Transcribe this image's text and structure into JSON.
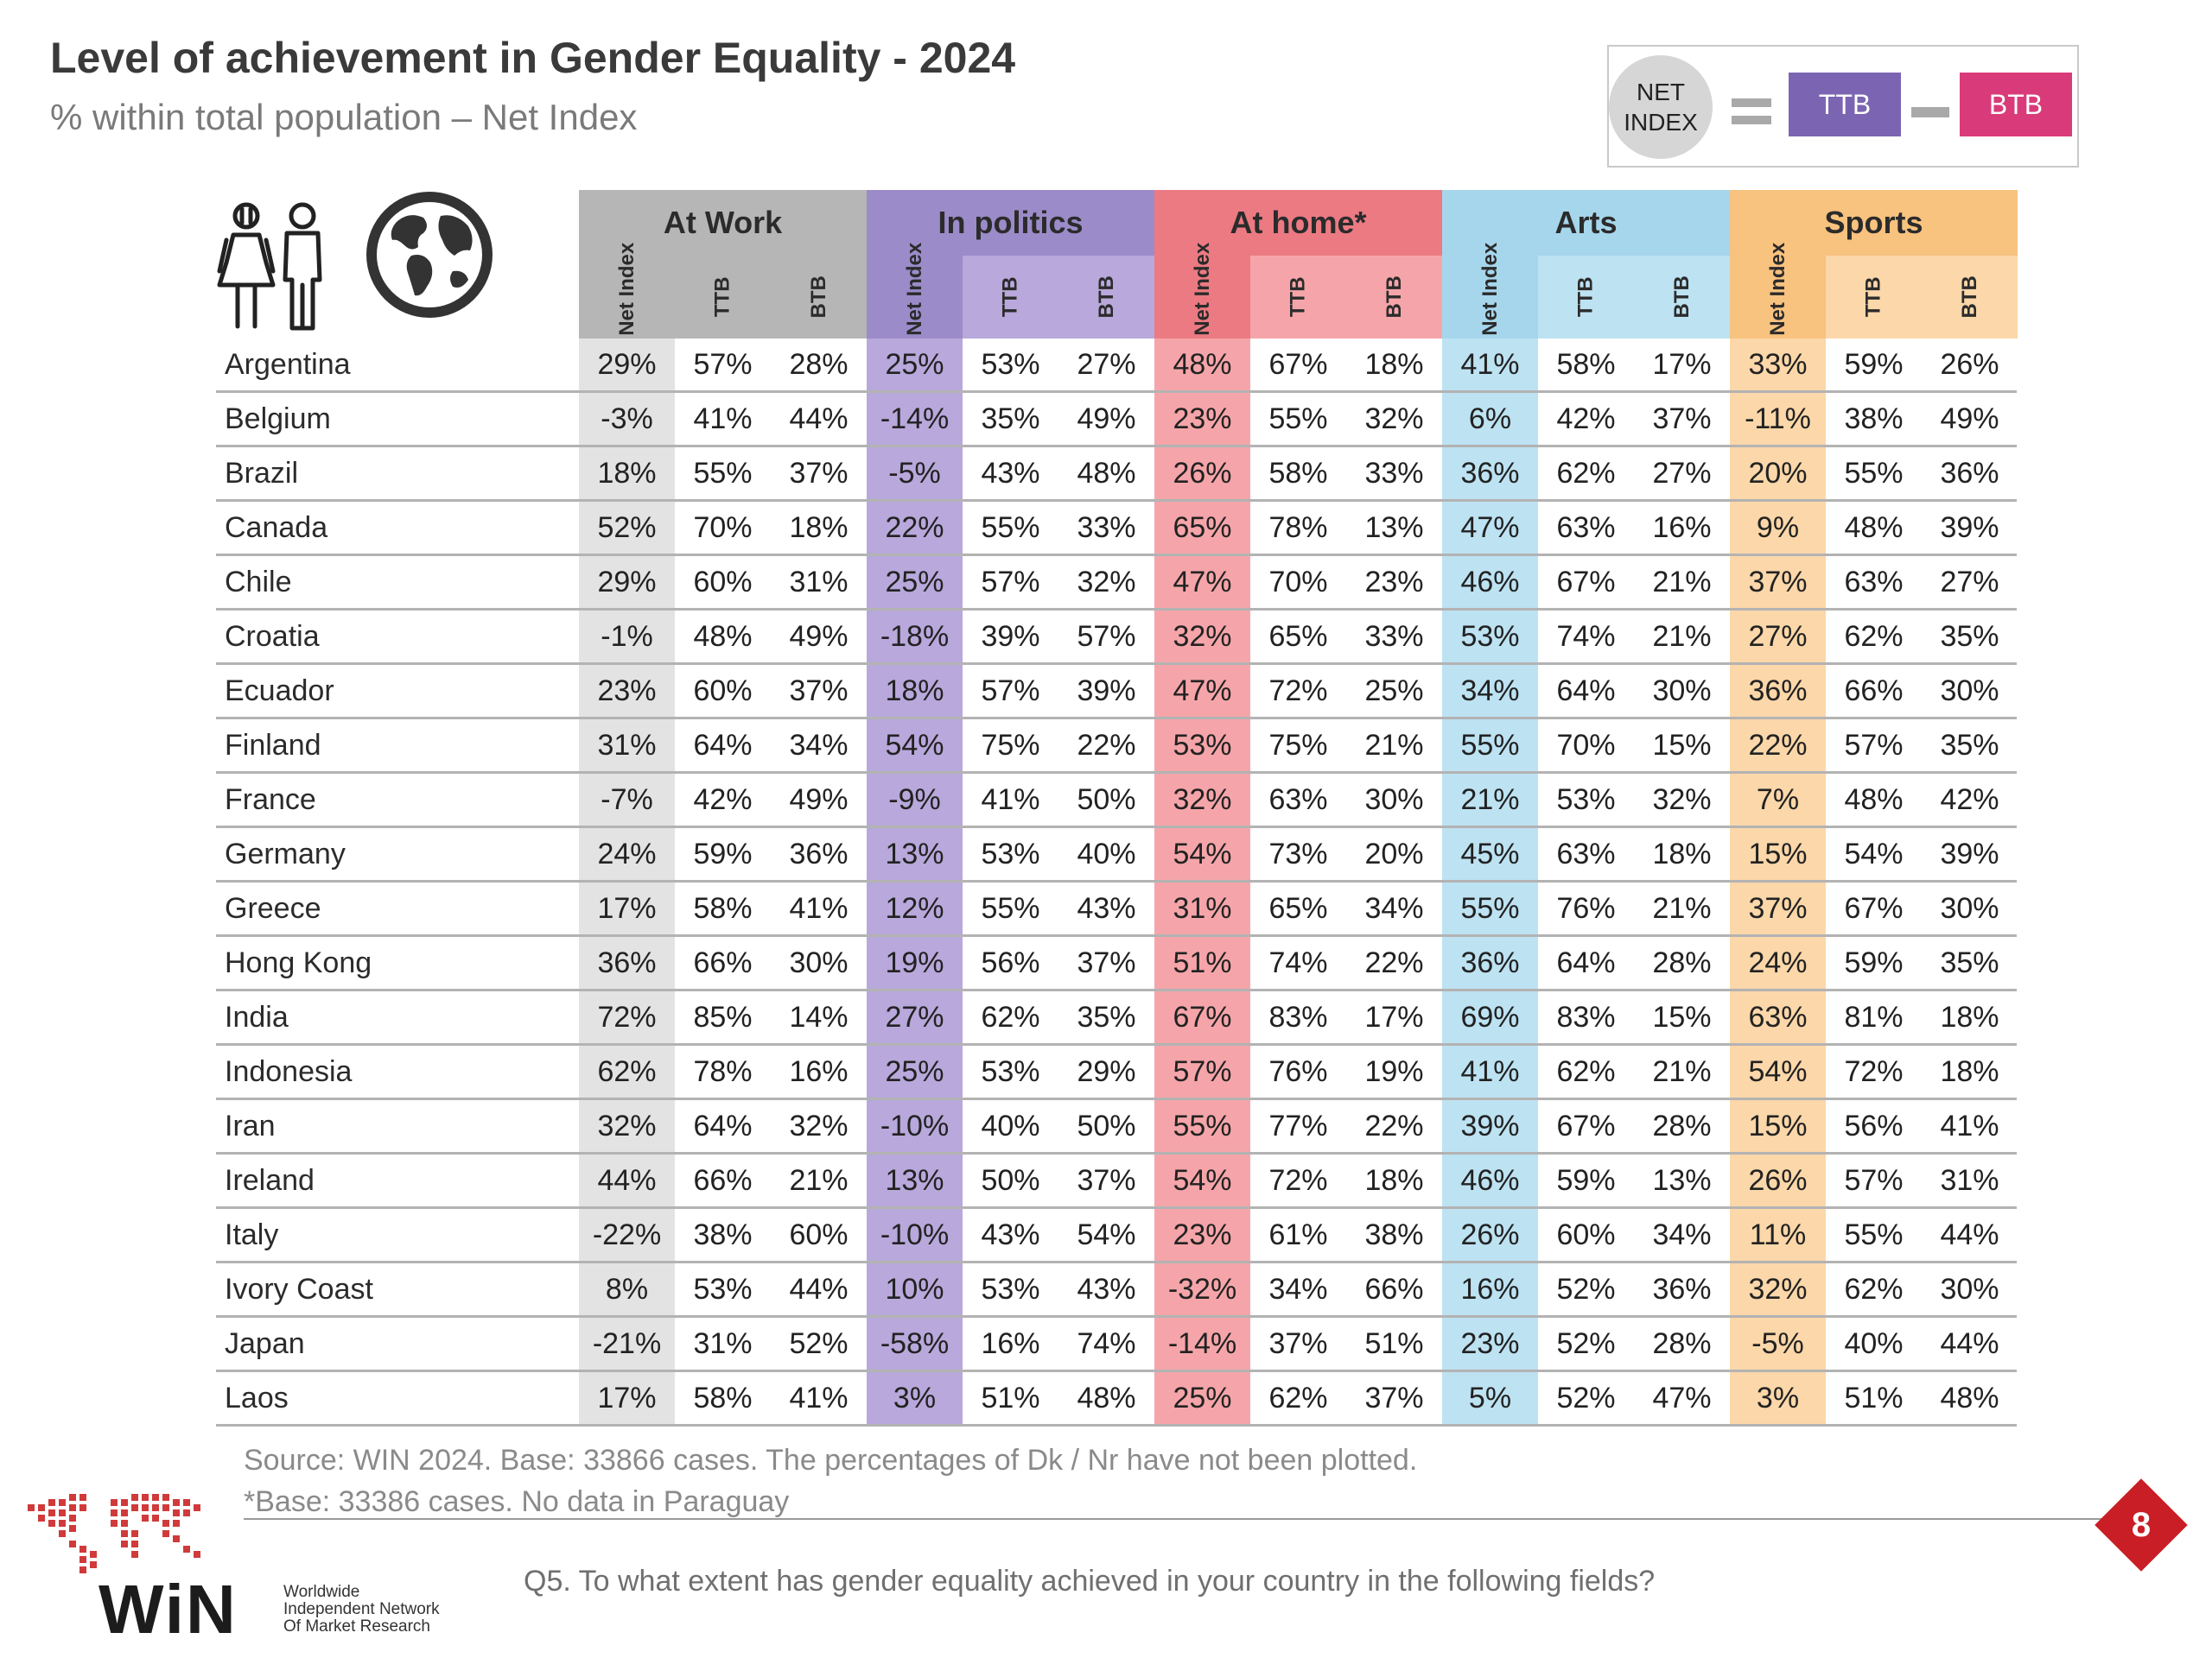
{
  "title": "Level of achievement in Gender Equality - 2024",
  "subtitle": "% within total population – Net Index",
  "legend": {
    "net_index_line1": "NET",
    "net_index_line2": "INDEX",
    "ttb": "TTB",
    "btb": "BTB"
  },
  "colors": {
    "work_header": "#b6b6b6",
    "work_net": "#e3e3e3",
    "politics_header": "#9b8bc9",
    "politics_net": "#b8a8db",
    "home_header": "#ec7a82",
    "home_net": "#f5a5a9",
    "arts_header": "#a6d6ec",
    "arts_net": "#bde2f2",
    "sports_header": "#f8c27f",
    "sports_net": "#fbd7a9"
  },
  "chart_data": {
    "type": "table",
    "title": "Level of achievement in Gender Equality - 2024",
    "subtitle": "% within total population – Net Index",
    "groups": [
      "At Work",
      "In politics",
      "At home*",
      "Arts",
      "Sports"
    ],
    "subcolumns": [
      "Net Index",
      "TTB",
      "BTB"
    ],
    "rows": [
      {
        "country": "Argentina",
        "values": [
          "29%",
          "57%",
          "28%",
          "25%",
          "53%",
          "27%",
          "48%",
          "67%",
          "18%",
          "41%",
          "58%",
          "17%",
          "33%",
          "59%",
          "26%"
        ]
      },
      {
        "country": "Belgium",
        "values": [
          "-3%",
          "41%",
          "44%",
          "-14%",
          "35%",
          "49%",
          "23%",
          "55%",
          "32%",
          "6%",
          "42%",
          "37%",
          "-11%",
          "38%",
          "49%"
        ]
      },
      {
        "country": "Brazil",
        "values": [
          "18%",
          "55%",
          "37%",
          "-5%",
          "43%",
          "48%",
          "26%",
          "58%",
          "33%",
          "36%",
          "62%",
          "27%",
          "20%",
          "55%",
          "36%"
        ]
      },
      {
        "country": "Canada",
        "values": [
          "52%",
          "70%",
          "18%",
          "22%",
          "55%",
          "33%",
          "65%",
          "78%",
          "13%",
          "47%",
          "63%",
          "16%",
          "9%",
          "48%",
          "39%"
        ]
      },
      {
        "country": "Chile",
        "values": [
          "29%",
          "60%",
          "31%",
          "25%",
          "57%",
          "32%",
          "47%",
          "70%",
          "23%",
          "46%",
          "67%",
          "21%",
          "37%",
          "63%",
          "27%"
        ]
      },
      {
        "country": "Croatia",
        "values": [
          "-1%",
          "48%",
          "49%",
          "-18%",
          "39%",
          "57%",
          "32%",
          "65%",
          "33%",
          "53%",
          "74%",
          "21%",
          "27%",
          "62%",
          "35%"
        ]
      },
      {
        "country": "Ecuador",
        "values": [
          "23%",
          "60%",
          "37%",
          "18%",
          "57%",
          "39%",
          "47%",
          "72%",
          "25%",
          "34%",
          "64%",
          "30%",
          "36%",
          "66%",
          "30%"
        ]
      },
      {
        "country": "Finland",
        "values": [
          "31%",
          "64%",
          "34%",
          "54%",
          "75%",
          "22%",
          "53%",
          "75%",
          "21%",
          "55%",
          "70%",
          "15%",
          "22%",
          "57%",
          "35%"
        ]
      },
      {
        "country": "France",
        "values": [
          "-7%",
          "42%",
          "49%",
          "-9%",
          "41%",
          "50%",
          "32%",
          "63%",
          "30%",
          "21%",
          "53%",
          "32%",
          "7%",
          "48%",
          "42%"
        ]
      },
      {
        "country": "Germany",
        "values": [
          "24%",
          "59%",
          "36%",
          "13%",
          "53%",
          "40%",
          "54%",
          "73%",
          "20%",
          "45%",
          "63%",
          "18%",
          "15%",
          "54%",
          "39%"
        ]
      },
      {
        "country": "Greece",
        "values": [
          "17%",
          "58%",
          "41%",
          "12%",
          "55%",
          "43%",
          "31%",
          "65%",
          "34%",
          "55%",
          "76%",
          "21%",
          "37%",
          "67%",
          "30%"
        ]
      },
      {
        "country": "Hong Kong",
        "values": [
          "36%",
          "66%",
          "30%",
          "19%",
          "56%",
          "37%",
          "51%",
          "74%",
          "22%",
          "36%",
          "64%",
          "28%",
          "24%",
          "59%",
          "35%"
        ]
      },
      {
        "country": "India",
        "values": [
          "72%",
          "85%",
          "14%",
          "27%",
          "62%",
          "35%",
          "67%",
          "83%",
          "17%",
          "69%",
          "83%",
          "15%",
          "63%",
          "81%",
          "18%"
        ]
      },
      {
        "country": "Indonesia",
        "values": [
          "62%",
          "78%",
          "16%",
          "25%",
          "53%",
          "29%",
          "57%",
          "76%",
          "19%",
          "41%",
          "62%",
          "21%",
          "54%",
          "72%",
          "18%"
        ]
      },
      {
        "country": "Iran",
        "values": [
          "32%",
          "64%",
          "32%",
          "-10%",
          "40%",
          "50%",
          "55%",
          "77%",
          "22%",
          "39%",
          "67%",
          "28%",
          "15%",
          "56%",
          "41%"
        ]
      },
      {
        "country": "Ireland",
        "values": [
          "44%",
          "66%",
          "21%",
          "13%",
          "50%",
          "37%",
          "54%",
          "72%",
          "18%",
          "46%",
          "59%",
          "13%",
          "26%",
          "57%",
          "31%"
        ]
      },
      {
        "country": "Italy",
        "values": [
          "-22%",
          "38%",
          "60%",
          "-10%",
          "43%",
          "54%",
          "23%",
          "61%",
          "38%",
          "26%",
          "60%",
          "34%",
          "11%",
          "55%",
          "44%"
        ]
      },
      {
        "country": "Ivory Coast",
        "values": [
          "8%",
          "53%",
          "44%",
          "10%",
          "53%",
          "43%",
          "-32%",
          "34%",
          "66%",
          "16%",
          "52%",
          "36%",
          "32%",
          "62%",
          "30%"
        ]
      },
      {
        "country": "Japan",
        "values": [
          "-21%",
          "31%",
          "52%",
          "-58%",
          "16%",
          "74%",
          "-14%",
          "37%",
          "51%",
          "23%",
          "52%",
          "28%",
          "-5%",
          "40%",
          "44%"
        ]
      },
      {
        "country": "Laos",
        "values": [
          "17%",
          "58%",
          "41%",
          "3%",
          "51%",
          "48%",
          "25%",
          "62%",
          "37%",
          "5%",
          "52%",
          "47%",
          "3%",
          "51%",
          "48%"
        ]
      }
    ]
  },
  "footer": {
    "source": "Source: WIN 2024. Base: 33866 cases. The percentages of Dk / Nr have not been plotted.",
    "base_note": "*Base: 33386 cases. No data in Paraguay",
    "question": "Q5. To what extent has gender equality achieved in your country in the following fields?",
    "page_number": "8"
  },
  "branding": {
    "logo_text": "WiN",
    "tagline_1": "Worldwide",
    "tagline_2": "Independent Network",
    "tagline_3": "Of Market Research"
  }
}
